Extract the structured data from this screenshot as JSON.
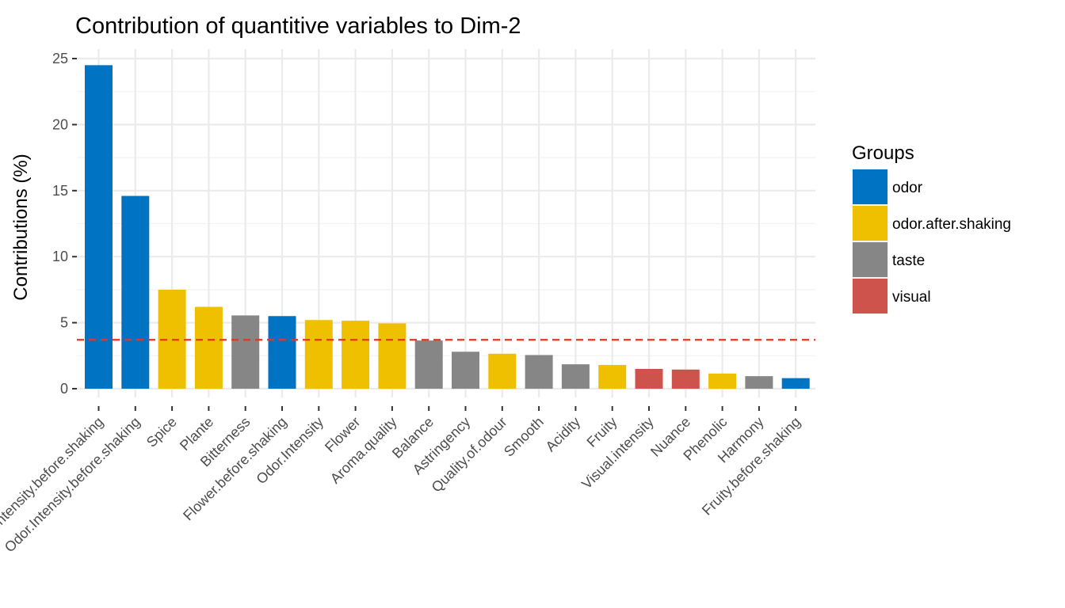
{
  "chart_data": {
    "type": "bar",
    "title": "Contribution of quantitive variables to Dim-2",
    "xlabel": "",
    "ylabel": "Contributions (%)",
    "ylim": [
      0,
      25.5
    ],
    "yticks": [
      0,
      5,
      10,
      15,
      20,
      25
    ],
    "grid": true,
    "legend": {
      "title": "Groups",
      "position": "right",
      "entries": [
        {
          "name": "odor",
          "color": "#0073C2"
        },
        {
          "name": "odor.after.shaking",
          "color": "#EFC000"
        },
        {
          "name": "taste",
          "color": "#868686"
        },
        {
          "name": "visual",
          "color": "#CD534C"
        }
      ]
    },
    "reference_line": {
      "value": 3.7,
      "color": "#E8351E",
      "style": "dashed"
    },
    "categories": [
      "Intensity.before.shaking",
      "Odor.Intensity.before.shaking",
      "Spice",
      "Plante",
      "Bitterness",
      "Flower.before.shaking",
      "Odor.Intensity",
      "Flower",
      "Aroma.quality",
      "Balance",
      "Astringency",
      "Quality.of.odour",
      "Smooth",
      "Acidity",
      "Fruity",
      "Visual.intensity",
      "Nuance",
      "Phenolic",
      "Harmony",
      "Fruity.before.shaking"
    ],
    "values": [
      24.5,
      14.6,
      7.5,
      6.2,
      5.55,
      5.5,
      5.2,
      5.15,
      4.95,
      3.65,
      2.8,
      2.65,
      2.55,
      1.85,
      1.8,
      1.5,
      1.45,
      1.15,
      0.95,
      0.8
    ],
    "groups": [
      "odor",
      "odor",
      "odor.after.shaking",
      "odor.after.shaking",
      "taste",
      "odor",
      "odor.after.shaking",
      "odor.after.shaking",
      "odor.after.shaking",
      "taste",
      "taste",
      "odor.after.shaking",
      "taste",
      "taste",
      "odor.after.shaking",
      "visual",
      "visual",
      "odor.after.shaking",
      "taste",
      "odor"
    ]
  }
}
